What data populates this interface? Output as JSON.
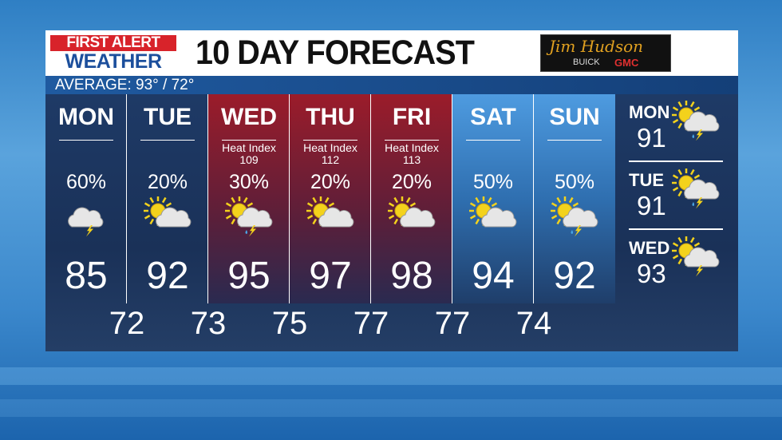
{
  "header": {
    "logo_line1": "FIRST ALERT",
    "logo_line2": "WEATHER",
    "title": "10 DAY FORECAST",
    "sponsor": {
      "signature": "Jim Hudson",
      "brand1": "BUICK",
      "brand2": "GMC"
    }
  },
  "average": "AVERAGE:  93° / 72°",
  "days": [
    {
      "day": "MON",
      "heat_index_label": "",
      "heat_index": "",
      "precip": "60%",
      "icon": "cloud-lightning",
      "high": "85",
      "style": "normal"
    },
    {
      "day": "TUE",
      "heat_index_label": "",
      "heat_index": "",
      "precip": "20%",
      "icon": "sun-cloud",
      "high": "92",
      "style": "normal"
    },
    {
      "day": "WED",
      "heat_index_label": "Heat Index",
      "heat_index": "109",
      "precip": "30%",
      "icon": "sun-cloud-storm",
      "high": "95",
      "style": "hot"
    },
    {
      "day": "THU",
      "heat_index_label": "Heat Index",
      "heat_index": "112",
      "precip": "20%",
      "icon": "sun-cloud",
      "high": "97",
      "style": "hot"
    },
    {
      "day": "FRI",
      "heat_index_label": "Heat Index",
      "heat_index": "113",
      "precip": "20%",
      "icon": "sun-cloud",
      "high": "98",
      "style": "hot"
    },
    {
      "day": "SAT",
      "heat_index_label": "",
      "heat_index": "",
      "precip": "50%",
      "icon": "sun-cloud",
      "high": "94",
      "style": "weekend"
    },
    {
      "day": "SUN",
      "heat_index_label": "",
      "heat_index": "",
      "precip": "50%",
      "icon": "sun-cloud-storm",
      "high": "92",
      "style": "weekend"
    }
  ],
  "lows": [
    "72",
    "73",
    "75",
    "77",
    "77",
    "74"
  ],
  "extended": [
    {
      "day": "MON",
      "high": "91",
      "icon": "sun-cloud-storm"
    },
    {
      "day": "TUE",
      "high": "91",
      "icon": "sun-cloud-storm"
    },
    {
      "day": "WED",
      "high": "93",
      "icon": "sun-cloud-lightning"
    }
  ],
  "colors": {
    "hot": "#9b1c2a",
    "weekend": "#4e9be0",
    "panel": "#1e3a66",
    "alert_red": "#d8232a",
    "alert_blue": "#1c4f9c"
  }
}
